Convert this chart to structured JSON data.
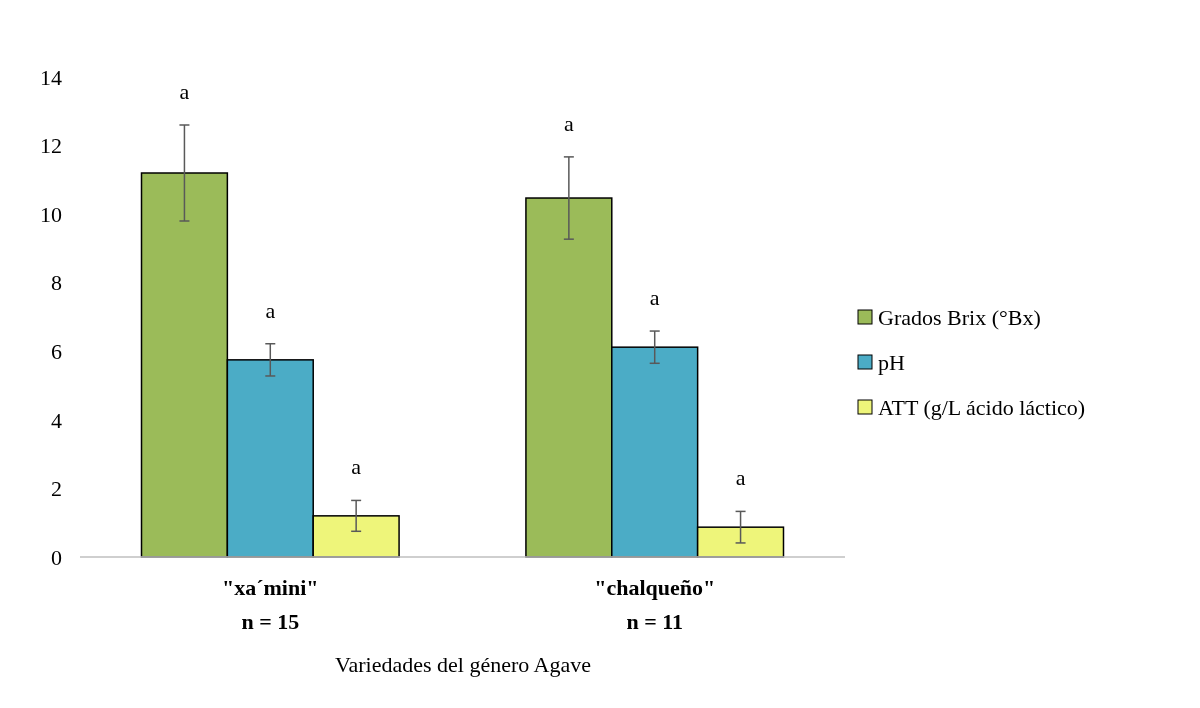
{
  "chart_data": {
    "type": "bar",
    "xlabel": "Variedades del género Agave",
    "categories": [
      "\"xa´mini\"\nn = 15",
      "\"chalqueño\"\nn = 11"
    ],
    "series": [
      {
        "name": "Grados Brix (°Bx)",
        "color": "#9bbb59",
        "values": [
          11.2,
          10.47
        ],
        "errors": [
          1.4,
          1.2
        ],
        "value_labels": [
          "a",
          "a"
        ]
      },
      {
        "name": "pH",
        "color": "#4bacc6",
        "values": [
          5.75,
          6.12
        ],
        "errors": [
          0.47,
          0.47
        ],
        "value_labels": [
          "a",
          "a"
        ]
      },
      {
        "name": "ATT (g/L ácido láctico)",
        "color": "#eef57a",
        "values": [
          1.2,
          0.87
        ],
        "errors": [
          0.45,
          0.46
        ],
        "value_labels": [
          "a",
          "a"
        ]
      }
    ],
    "ylim": [
      0,
      14
    ],
    "yticks": [
      0,
      2,
      4,
      6,
      8,
      10,
      12,
      14
    ],
    "grid": false,
    "legend": "right"
  }
}
